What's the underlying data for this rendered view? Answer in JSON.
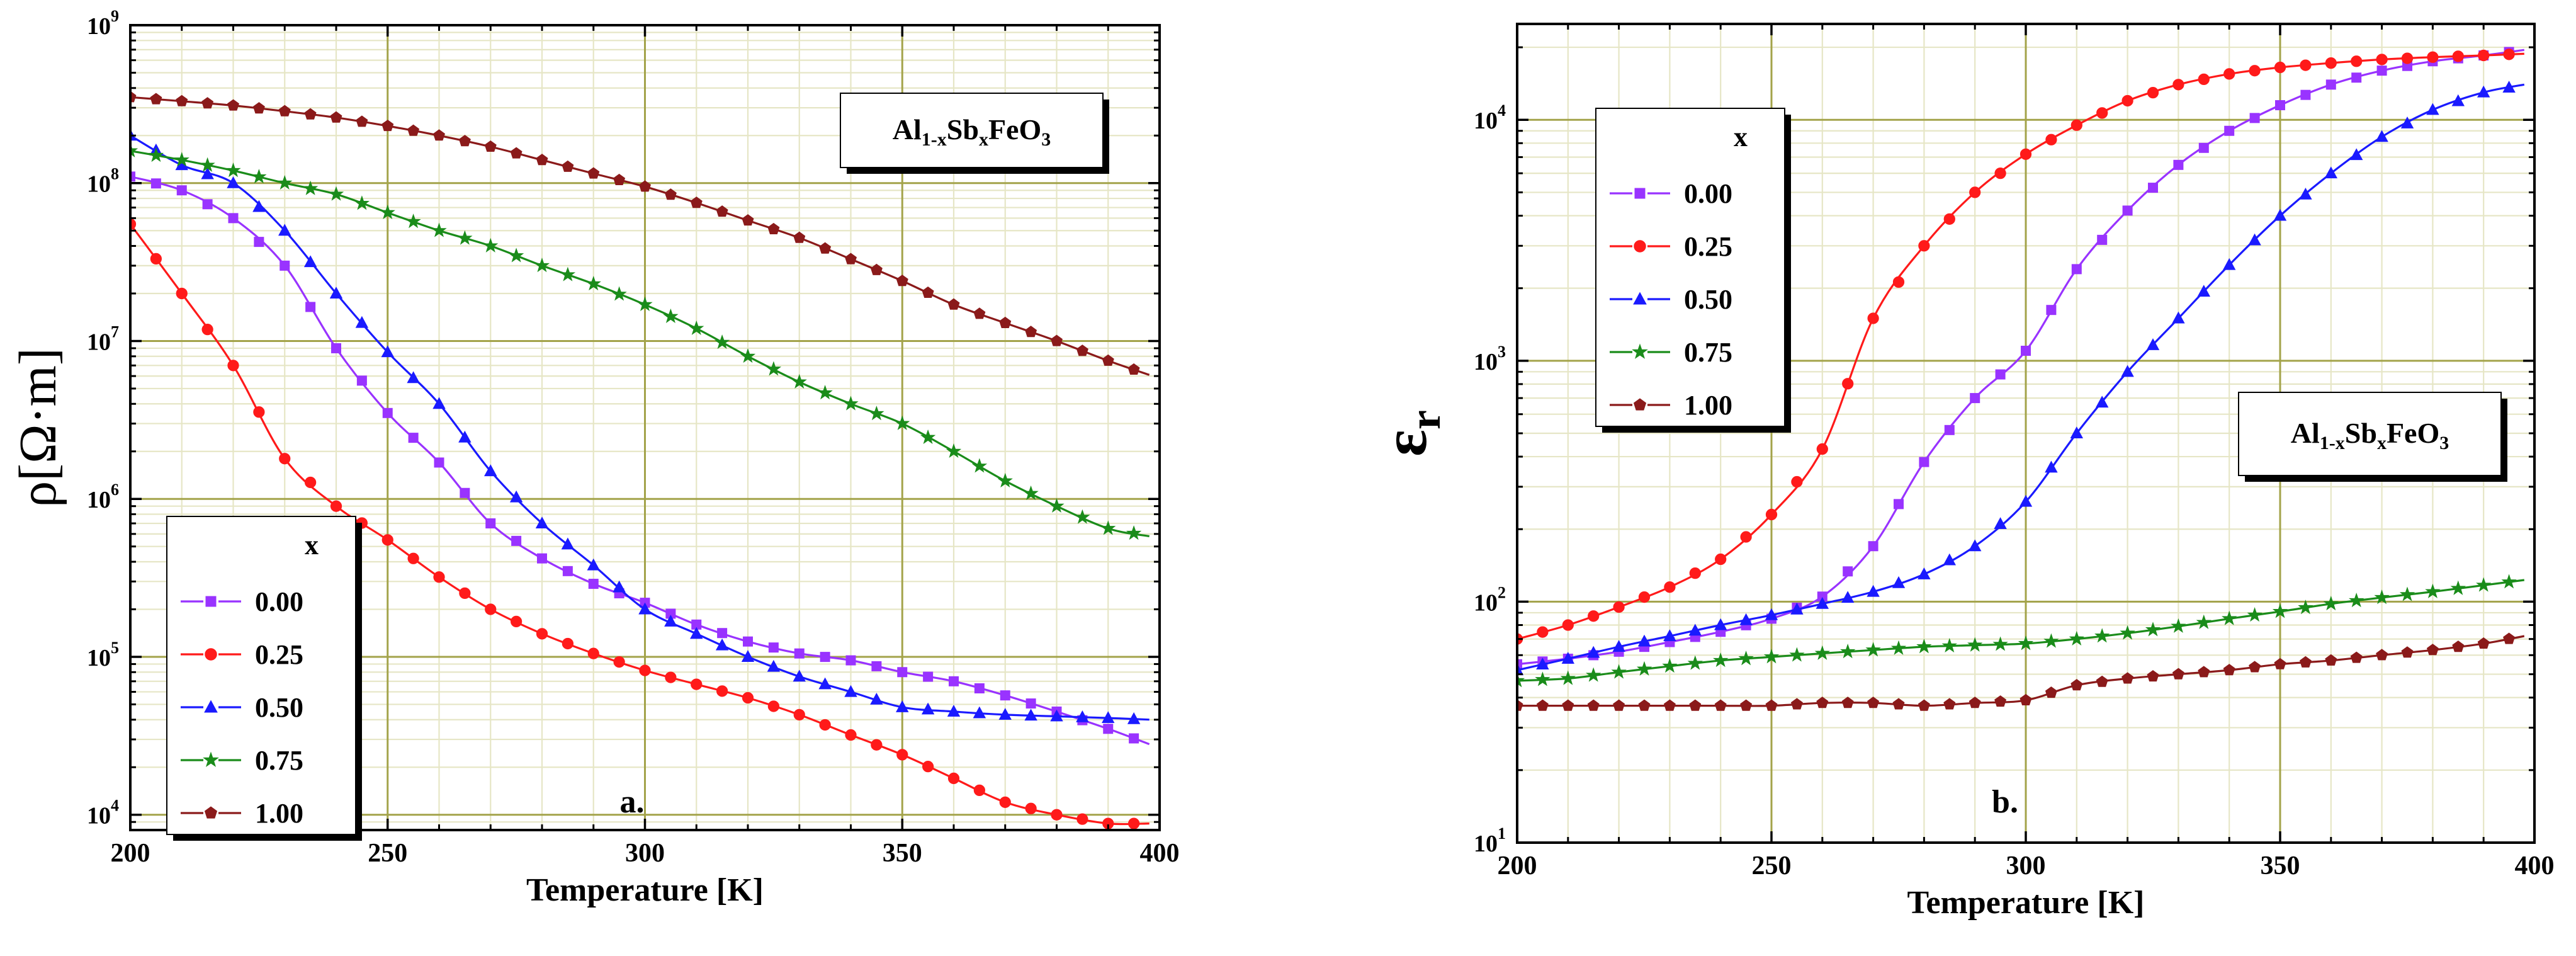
{
  "chart_data": [
    {
      "type": "line",
      "panel_label": "a.",
      "title": "",
      "compound": {
        "base": "Al",
        "sub1": "1-x",
        "el2": "Sb",
        "sub2": "x",
        "tail": "FeO",
        "sub3": "3"
      },
      "xlabel": "Temperature [K]",
      "ylabel": "ρ[Ω·m]",
      "xlim": [
        200,
        400
      ],
      "ylim": [
        8000,
        1000000000
      ],
      "yscale": "log",
      "xticks": [
        "200",
        "250",
        "300",
        "350",
        "400"
      ],
      "ytick_base": "10",
      "yticks": [
        {
          "value": 10000,
          "exp": "4"
        },
        {
          "value": 100000,
          "exp": "5"
        },
        {
          "value": 1000000,
          "exp": "6"
        },
        {
          "value": 10000000,
          "exp": "7"
        },
        {
          "value": 100000000,
          "exp": "8"
        },
        {
          "value": 1000000000,
          "exp": "9"
        }
      ],
      "grid": true,
      "legend": {
        "title": "x",
        "position": "bottom-left"
      },
      "series": [
        {
          "name": "0.00",
          "color": "#9933ff",
          "marker": "square",
          "x": [
            200,
            210,
            220,
            230,
            240,
            250,
            260,
            270,
            280,
            290,
            300,
            310,
            320,
            330,
            340,
            350,
            360,
            370,
            380,
            390,
            398
          ],
          "values": [
            110000000,
            90000000,
            60000000,
            30000000,
            9000000,
            3500000,
            1700000,
            700000,
            420000,
            290000,
            220000,
            160000,
            125000,
            105000,
            95000,
            80000,
            70000,
            57000,
            45000,
            35000,
            28000
          ]
        },
        {
          "name": "0.25",
          "color": "#ff1a1a",
          "marker": "circle",
          "x": [
            200,
            210,
            220,
            230,
            240,
            250,
            260,
            270,
            280,
            290,
            300,
            310,
            320,
            330,
            340,
            350,
            360,
            370,
            380,
            390,
            398
          ],
          "values": [
            55000000,
            20000000,
            7000000,
            1800000,
            900000,
            550000,
            320000,
            200000,
            140000,
            105000,
            82000,
            67000,
            55000,
            43000,
            32000,
            24000,
            17000,
            12000,
            10000,
            8800,
            8800
          ]
        },
        {
          "name": "0.50",
          "color": "#1a1aff",
          "marker": "triangle",
          "x": [
            200,
            210,
            220,
            230,
            240,
            250,
            260,
            270,
            280,
            290,
            300,
            310,
            320,
            330,
            340,
            350,
            360,
            370,
            380,
            390,
            398
          ],
          "values": [
            200000000,
            130000000,
            100000000,
            50000000,
            20000000,
            8500000,
            4000000,
            1500000,
            700000,
            380000,
            200000,
            140000,
            100000,
            75000,
            60000,
            48000,
            45000,
            43000,
            42000,
            41000,
            40000
          ]
        },
        {
          "name": "0.75",
          "color": "#1a8c1a",
          "marker": "star",
          "x": [
            200,
            210,
            220,
            230,
            240,
            250,
            260,
            270,
            280,
            290,
            300,
            310,
            320,
            330,
            340,
            350,
            360,
            370,
            380,
            390,
            398
          ],
          "values": [
            160000000,
            140000000,
            120000000,
            100000000,
            85000000,
            65000000,
            50000000,
            40000000,
            30000000,
            23000000,
            17000000,
            12000000,
            8000000,
            5500000,
            4000000,
            3000000,
            2000000,
            1300000,
            900000,
            650000,
            580000
          ]
        },
        {
          "name": "1.00",
          "color": "#8b1a1a",
          "marker": "pentagon",
          "x": [
            200,
            210,
            220,
            230,
            240,
            250,
            260,
            270,
            280,
            290,
            300,
            310,
            320,
            330,
            340,
            350,
            360,
            370,
            380,
            390,
            398
          ],
          "values": [
            350000000,
            330000000,
            310000000,
            285000000,
            260000000,
            230000000,
            200000000,
            170000000,
            140000000,
            115000000,
            95000000,
            75000000,
            58000000,
            45000000,
            33000000,
            24000000,
            17000000,
            13000000,
            10000000,
            7500000,
            6100000
          ]
        }
      ]
    },
    {
      "type": "line",
      "panel_label": "b.",
      "title": "",
      "compound": {
        "base": "Al",
        "sub1": "1-x",
        "el2": "Sb",
        "sub2": "x",
        "tail": "FeO",
        "sub3": "3"
      },
      "xlabel": "Temperature [K]",
      "ylabel_main": "ε",
      "ylabel_sub": "r",
      "xlim": [
        200,
        400
      ],
      "ylim": [
        10,
        25000
      ],
      "yscale": "log",
      "xticks": [
        "200",
        "250",
        "300",
        "350",
        "400"
      ],
      "ytick_base": "10",
      "yticks": [
        {
          "value": 10,
          "exp": "1"
        },
        {
          "value": 100,
          "exp": "2"
        },
        {
          "value": 1000,
          "exp": "3"
        },
        {
          "value": 10000,
          "exp": "4"
        }
      ],
      "grid": true,
      "legend": {
        "title": "x",
        "position": "top-left"
      },
      "series": [
        {
          "name": "0.00",
          "color": "#9933ff",
          "marker": "square",
          "x": [
            200,
            210,
            220,
            230,
            240,
            250,
            260,
            270,
            280,
            290,
            300,
            310,
            320,
            330,
            340,
            350,
            360,
            370,
            380,
            390,
            398
          ],
          "values": [
            55,
            58,
            62,
            68,
            75,
            85,
            105,
            170,
            380,
            700,
            1100,
            2400,
            4200,
            6500,
            9000,
            11500,
            14000,
            16000,
            17500,
            18500,
            19500
          ]
        },
        {
          "name": "0.25",
          "color": "#ff1a1a",
          "marker": "circle",
          "x": [
            200,
            210,
            220,
            230,
            240,
            250,
            260,
            270,
            280,
            290,
            300,
            310,
            320,
            330,
            340,
            350,
            360,
            370,
            380,
            390,
            398
          ],
          "values": [
            70,
            80,
            95,
            115,
            150,
            230,
            430,
            1500,
            3000,
            5000,
            7200,
            9500,
            12000,
            14000,
            15500,
            16500,
            17200,
            17800,
            18200,
            18500,
            18800
          ]
        },
        {
          "name": "0.50",
          "color": "#1a1aff",
          "marker": "triangle",
          "x": [
            200,
            210,
            220,
            230,
            240,
            250,
            260,
            270,
            280,
            290,
            300,
            310,
            320,
            330,
            340,
            350,
            360,
            370,
            380,
            390,
            398
          ],
          "values": [
            52,
            58,
            65,
            72,
            80,
            88,
            98,
            110,
            130,
            170,
            260,
            500,
            900,
            1500,
            2500,
            4000,
            6000,
            8500,
            11000,
            13000,
            14000
          ]
        },
        {
          "name": "0.75",
          "color": "#1a8c1a",
          "marker": "star",
          "x": [
            200,
            210,
            220,
            230,
            240,
            250,
            260,
            270,
            280,
            290,
            300,
            310,
            320,
            330,
            340,
            350,
            360,
            370,
            380,
            390,
            398
          ],
          "values": [
            47,
            48,
            51,
            54,
            57,
            59,
            61,
            63,
            65,
            66,
            67,
            70,
            74,
            79,
            85,
            91,
            98,
            104,
            110,
            117,
            123
          ]
        },
        {
          "name": "1.00",
          "color": "#8b1a1a",
          "marker": "pentagon",
          "x": [
            200,
            210,
            220,
            230,
            240,
            250,
            260,
            270,
            280,
            290,
            300,
            310,
            320,
            330,
            340,
            350,
            360,
            370,
            380,
            390,
            398
          ],
          "values": [
            37,
            37,
            37,
            37,
            37,
            37,
            38,
            38,
            37,
            38,
            39,
            45,
            48,
            50,
            52,
            55,
            57,
            60,
            63,
            67,
            72
          ]
        }
      ]
    }
  ]
}
